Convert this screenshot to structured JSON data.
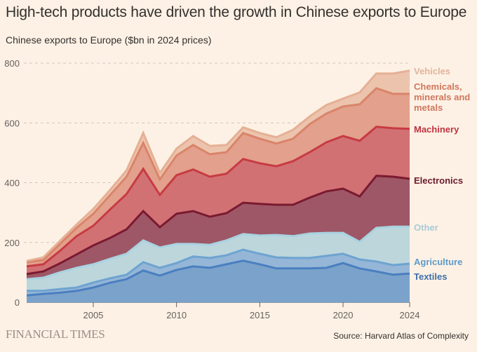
{
  "title": "High-tech products have driven the growth in Chinese exports to Europe",
  "subtitle": "Chinese exports to Europe ($bn in 2024 prices)",
  "footer": {
    "publisher": "FINANCIAL TIMES",
    "source": "Source: Harvard Atlas of Complexity"
  },
  "chart_data": {
    "type": "area",
    "stacked": true,
    "title": "High-tech products have driven the growth in Chinese exports to Europe",
    "subtitle": "Chinese exports to Europe ($bn in 2024 prices)",
    "xlabel": "",
    "ylabel": "",
    "xlim": [
      2001,
      2024
    ],
    "ylim": [
      0,
      800
    ],
    "yticks": [
      0,
      200,
      400,
      600,
      800
    ],
    "xticks": [
      2005,
      2010,
      2015,
      2020,
      2024
    ],
    "grid": "horizontal-dashed",
    "legend": "right (inline labels)",
    "x": [
      2001,
      2002,
      2003,
      2004,
      2005,
      2006,
      2007,
      2008,
      2009,
      2010,
      2011,
      2012,
      2013,
      2014,
      2015,
      2016,
      2017,
      2018,
      2019,
      2020,
      2021,
      2022,
      2023,
      2024
    ],
    "cumulative_note": "values below are stacked cumulative tops of each layer (bottom to top)",
    "series": [
      {
        "name": "Textiles",
        "fill": "#7ba2ca",
        "line": "#4a7fc0",
        "label_color": "#3f6fa8",
        "values": [
          23,
          28,
          32,
          38,
          49,
          65,
          77,
          106,
          89,
          108,
          120,
          115,
          127,
          139,
          127,
          113,
          113,
          113,
          115,
          131,
          113,
          103,
          92,
          96
        ]
      },
      {
        "name": "Agriculture",
        "fill": "#95b6d7",
        "line": "#6ea3d0",
        "label_color": "#5f9ac8",
        "values": [
          38,
          38,
          44,
          49,
          66,
          80,
          92,
          134,
          115,
          131,
          153,
          148,
          157,
          176,
          162,
          150,
          148,
          148,
          155,
          162,
          143,
          136,
          124,
          129
        ]
      },
      {
        "name": "Other",
        "fill": "#bcd6dc",
        "line": "#a9d2e0",
        "label_color": "#a9cbd8",
        "values": [
          77,
          82,
          100,
          115,
          127,
          145,
          162,
          207,
          183,
          195,
          195,
          192,
          207,
          228,
          223,
          225,
          221,
          230,
          232,
          232,
          202,
          249,
          253,
          253
        ]
      },
      {
        "name": "Electronics",
        "fill": "#9e5766",
        "line": "#7a1a30",
        "label_color": "#6b1a2e",
        "values": [
          94,
          103,
          130,
          160,
          190,
          215,
          244,
          305,
          251,
          296,
          305,
          286,
          298,
          333,
          329,
          326,
          326,
          350,
          371,
          380,
          354,
          423,
          420,
          413
        ]
      },
      {
        "name": "Machinery",
        "fill": "#d27174",
        "line": "#c73b43",
        "label_color": "#bf3440",
        "values": [
          120,
          127,
          172,
          221,
          256,
          310,
          362,
          446,
          359,
          425,
          444,
          420,
          430,
          479,
          465,
          455,
          472,
          502,
          535,
          556,
          540,
          587,
          582,
          580
        ]
      },
      {
        "name": "Chemicals, minerals and metals",
        "fill": "#e3a08c",
        "line": "#d9846a",
        "label_color": "#d0775e",
        "label_lines": [
          "Chemicals,",
          "minerals and",
          "metals"
        ],
        "values": [
          134,
          141,
          195,
          249,
          296,
          358,
          420,
          533,
          411,
          491,
          526,
          495,
          502,
          566,
          547,
          531,
          547,
          596,
          631,
          655,
          662,
          716,
          697,
          697
        ]
      },
      {
        "name": "Vehicles",
        "fill": "#ecc4ad",
        "line": "#e5b095",
        "label_color": "#e1b49c",
        "values": [
          138,
          150,
          205,
          260,
          312,
          375,
          441,
          566,
          432,
          514,
          556,
          523,
          526,
          585,
          566,
          552,
          577,
          622,
          660,
          681,
          702,
          765,
          765,
          775
        ]
      }
    ]
  }
}
